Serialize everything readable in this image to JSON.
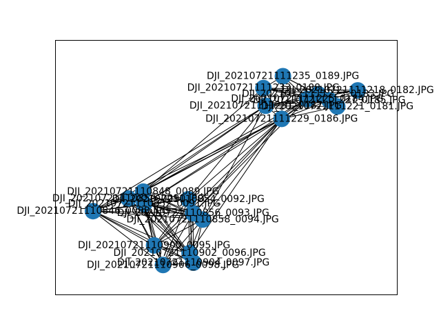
{
  "chart_data": {
    "type": "network",
    "node_color": "#1f77b4",
    "edge_color": "#000000",
    "nodes": [
      {
        "id": "n0189",
        "label": "DJI_20210721111235_0189.JPG",
        "x": 0.678,
        "y": 0.892
      },
      {
        "id": "n0188",
        "label": "DJI_20210721111233_0188.JPG",
        "x": 0.617,
        "y": 0.841
      },
      {
        "id": "n0182",
        "label": "DJI_20210721111218_0182.JPG",
        "x": 0.912,
        "y": 0.831
      },
      {
        "id": "n0183",
        "label": "DJI_20210721111223_0183.JPG",
        "x": 0.788,
        "y": 0.815
      },
      {
        "id": "n0184",
        "label": "DJI_20210721111225_0184.JPG",
        "x": 0.754,
        "y": 0.794
      },
      {
        "id": "n0185",
        "label": "DJI_20210721111227_0185.JPG",
        "x": 0.823,
        "y": 0.789
      },
      {
        "id": "n0187",
        "label": "DJI_20210721111231_0187.JPG",
        "x": 0.624,
        "y": 0.765
      },
      {
        "id": "n0181",
        "label": "DJI_20210721111221_0181.JPG",
        "x": 0.848,
        "y": 0.762
      },
      {
        "id": "n0186",
        "label": "DJI_20210721111229_0186.JPG",
        "x": 0.674,
        "y": 0.709
      },
      {
        "id": "n0089",
        "label": "DJI_20210721110848_0089.JPG",
        "x": 0.241,
        "y": 0.397
      },
      {
        "id": "n0090",
        "label": "DJI_20210721110850_0090.JPG",
        "x": 0.195,
        "y": 0.367
      },
      {
        "id": "n0092",
        "label": "DJI_20210721110854_0092.JPG",
        "x": 0.382,
        "y": 0.364
      },
      {
        "id": "n0091",
        "label": "DJI_20210721110852_0091.JPG",
        "x": 0.244,
        "y": 0.344
      },
      {
        "id": "n0088",
        "label": "DJI_20210721110846_0088.JPG",
        "x": 0.084,
        "y": 0.313
      },
      {
        "id": "n0093",
        "label": "DJI_20210721110856_0093.JPG",
        "x": 0.397,
        "y": 0.304
      },
      {
        "id": "n0094",
        "label": "DJI_20210721110858_0094.JPG",
        "x": 0.427,
        "y": 0.277
      },
      {
        "id": "n0095",
        "label": "DJI_20210721110900_0095.JPG",
        "x": 0.275,
        "y": 0.166
      },
      {
        "id": "n0096",
        "label": "DJI_20210721110902_0096.JPG",
        "x": 0.386,
        "y": 0.133
      },
      {
        "id": "n0097",
        "label": "DJI_20210721110904_0097.JPG",
        "x": 0.398,
        "y": 0.092
      },
      {
        "id": "n0098",
        "label": "DJI_20210721110906_0098.JPG",
        "x": 0.303,
        "y": 0.082
      }
    ],
    "edges": [
      [
        "n0189",
        "n0188"
      ],
      [
        "n0189",
        "n0183"
      ],
      [
        "n0189",
        "n0184"
      ],
      [
        "n0189",
        "n0185"
      ],
      [
        "n0189",
        "n0187"
      ],
      [
        "n0189",
        "n0186"
      ],
      [
        "n0188",
        "n0183"
      ],
      [
        "n0188",
        "n0184"
      ],
      [
        "n0188",
        "n0187"
      ],
      [
        "n0188",
        "n0186"
      ],
      [
        "n0188",
        "n0185"
      ],
      [
        "n0188",
        "n0182"
      ],
      [
        "n0182",
        "n0183"
      ],
      [
        "n0182",
        "n0185"
      ],
      [
        "n0182",
        "n0181"
      ],
      [
        "n0182",
        "n0184"
      ],
      [
        "n0182",
        "n0187"
      ],
      [
        "n0183",
        "n0184"
      ],
      [
        "n0183",
        "n0185"
      ],
      [
        "n0183",
        "n0181"
      ],
      [
        "n0183",
        "n0187"
      ],
      [
        "n0183",
        "n0186"
      ],
      [
        "n0184",
        "n0185"
      ],
      [
        "n0184",
        "n0187"
      ],
      [
        "n0184",
        "n0186"
      ],
      [
        "n0184",
        "n0181"
      ],
      [
        "n0185",
        "n0181"
      ],
      [
        "n0185",
        "n0187"
      ],
      [
        "n0185",
        "n0186"
      ],
      [
        "n0187",
        "n0186"
      ],
      [
        "n0187",
        "n0181"
      ],
      [
        "n0181",
        "n0186"
      ],
      [
        "n0089",
        "n0187"
      ],
      [
        "n0089",
        "n0186"
      ],
      [
        "n0089",
        "n0184"
      ],
      [
        "n0089",
        "n0188"
      ],
      [
        "n0090",
        "n0187"
      ],
      [
        "n0090",
        "n0186"
      ],
      [
        "n0091",
        "n0186"
      ],
      [
        "n0091",
        "n0184"
      ],
      [
        "n0092",
        "n0186"
      ],
      [
        "n0092",
        "n0187"
      ],
      [
        "n0093",
        "n0186"
      ],
      [
        "n0093",
        "n0184"
      ],
      [
        "n0094",
        "n0186"
      ],
      [
        "n0094",
        "n0187"
      ],
      [
        "n0088",
        "n0187"
      ],
      [
        "n0088",
        "n0186"
      ],
      [
        "n0095",
        "n0186"
      ],
      [
        "n0096",
        "n0186"
      ],
      [
        "n0089",
        "n0090"
      ],
      [
        "n0089",
        "n0091"
      ],
      [
        "n0089",
        "n0092"
      ],
      [
        "n0089",
        "n0088"
      ],
      [
        "n0089",
        "n0093"
      ],
      [
        "n0089",
        "n0094"
      ],
      [
        "n0089",
        "n0095"
      ],
      [
        "n0089",
        "n0096"
      ],
      [
        "n0089",
        "n0097"
      ],
      [
        "n0089",
        "n0098"
      ],
      [
        "n0090",
        "n0091"
      ],
      [
        "n0090",
        "n0092"
      ],
      [
        "n0090",
        "n0088"
      ],
      [
        "n0090",
        "n0093"
      ],
      [
        "n0090",
        "n0094"
      ],
      [
        "n0090",
        "n0095"
      ],
      [
        "n0090",
        "n0096"
      ],
      [
        "n0090",
        "n0097"
      ],
      [
        "n0090",
        "n0098"
      ],
      [
        "n0091",
        "n0092"
      ],
      [
        "n0091",
        "n0088"
      ],
      [
        "n0091",
        "n0093"
      ],
      [
        "n0091",
        "n0094"
      ],
      [
        "n0091",
        "n0095"
      ],
      [
        "n0091",
        "n0096"
      ],
      [
        "n0091",
        "n0097"
      ],
      [
        "n0091",
        "n0098"
      ],
      [
        "n0092",
        "n0088"
      ],
      [
        "n0092",
        "n0093"
      ],
      [
        "n0092",
        "n0094"
      ],
      [
        "n0092",
        "n0095"
      ],
      [
        "n0092",
        "n0096"
      ],
      [
        "n0092",
        "n0097"
      ],
      [
        "n0092",
        "n0098"
      ],
      [
        "n0088",
        "n0093"
      ],
      [
        "n0088",
        "n0094"
      ],
      [
        "n0088",
        "n0095"
      ],
      [
        "n0088",
        "n0096"
      ],
      [
        "n0088",
        "n0097"
      ],
      [
        "n0088",
        "n0098"
      ],
      [
        "n0093",
        "n0094"
      ],
      [
        "n0093",
        "n0095"
      ],
      [
        "n0093",
        "n0096"
      ],
      [
        "n0093",
        "n0097"
      ],
      [
        "n0093",
        "n0098"
      ],
      [
        "n0094",
        "n0095"
      ],
      [
        "n0094",
        "n0096"
      ],
      [
        "n0094",
        "n0097"
      ],
      [
        "n0094",
        "n0098"
      ],
      [
        "n0095",
        "n0096"
      ],
      [
        "n0095",
        "n0097"
      ],
      [
        "n0095",
        "n0098"
      ],
      [
        "n0096",
        "n0097"
      ],
      [
        "n0096",
        "n0098"
      ],
      [
        "n0097",
        "n0098"
      ]
    ]
  }
}
